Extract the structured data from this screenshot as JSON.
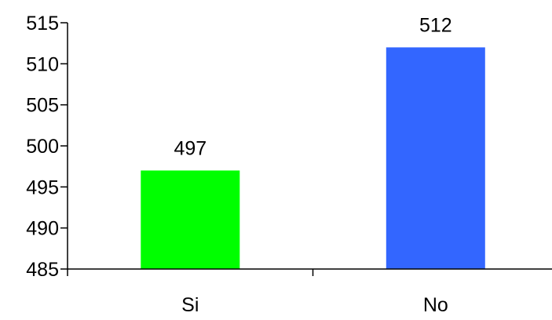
{
  "chart_data": {
    "type": "bar",
    "title": "",
    "xlabel": "",
    "ylabel": "",
    "categories": [
      "Si",
      "No"
    ],
    "values": [
      497,
      512
    ],
    "data_labels": [
      "497",
      "512"
    ],
    "ylim": [
      485,
      515
    ],
    "yticks": [
      485,
      490,
      495,
      500,
      505,
      510,
      515
    ],
    "ytick_labels": [
      "485",
      "490",
      "495",
      "500",
      "505",
      "510",
      "515"
    ],
    "grid": false,
    "legend": "none",
    "colors": [
      "#00ff00",
      "#3366ff"
    ]
  }
}
